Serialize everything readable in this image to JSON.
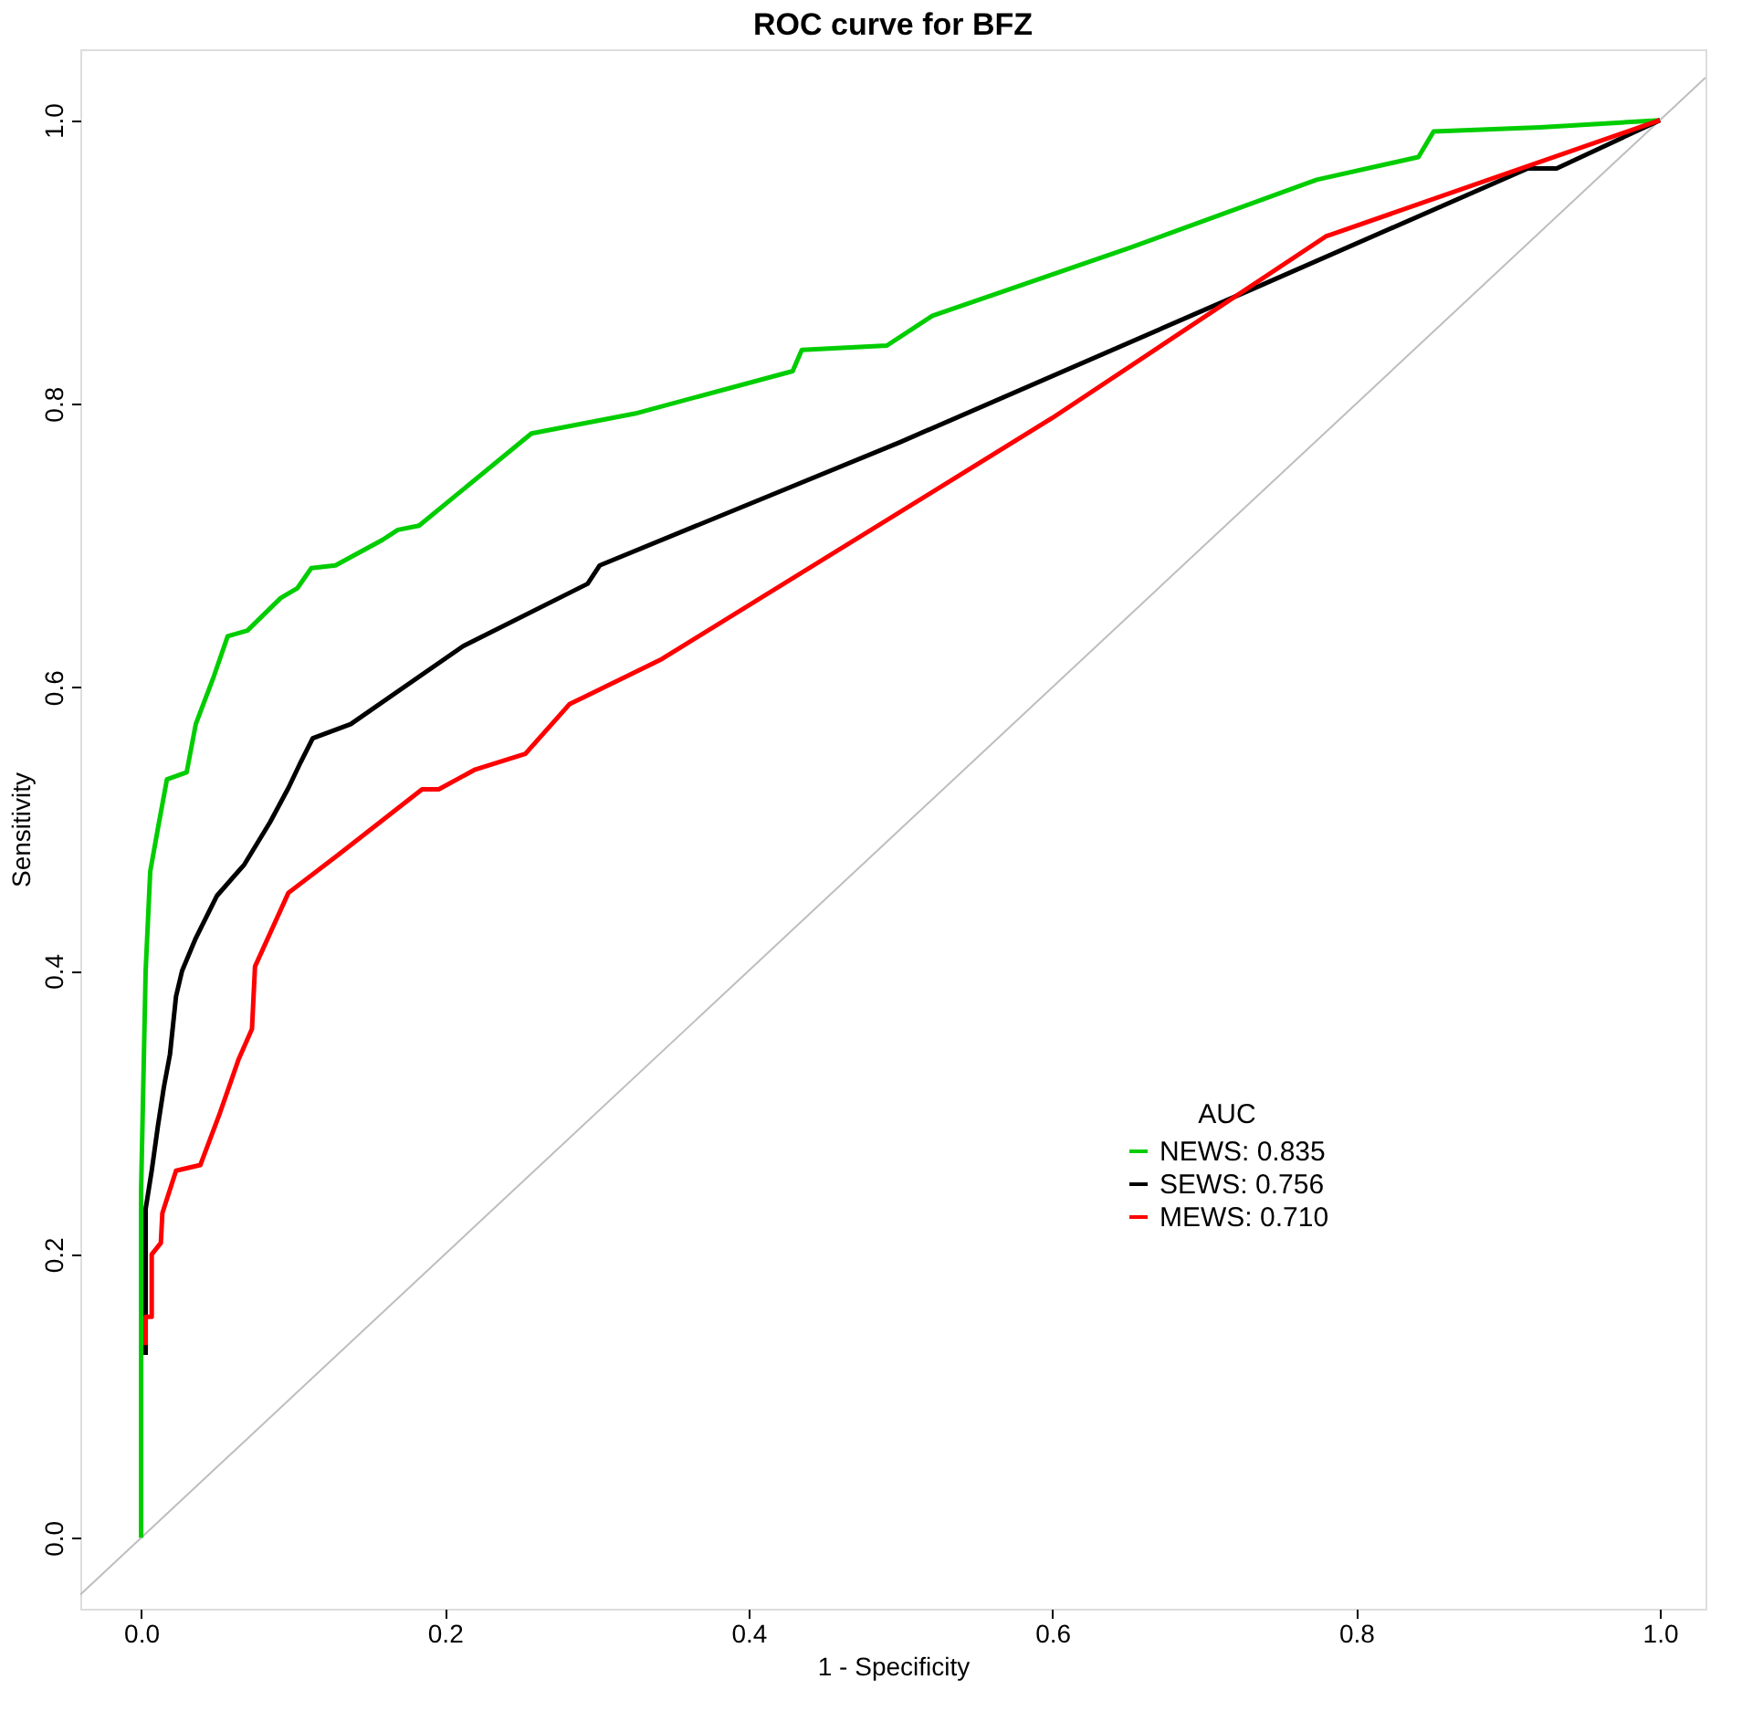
{
  "chart_data": {
    "type": "line",
    "title": "ROC curve for BFZ",
    "xlabel": "1 - Specificity",
    "ylabel": "Sensitivity",
    "legend_title": "AUC",
    "legend": "bottom right",
    "grid": false,
    "line_style": "solid",
    "marker": "none",
    "xlim": [
      -0.04,
      1.03
    ],
    "ylim": [
      -0.05,
      1.05
    ],
    "xticks": [
      {
        "value": 0,
        "label": "0.0"
      },
      {
        "value": 0.2,
        "label": "0.2"
      },
      {
        "value": 0.4,
        "label": "0.4"
      },
      {
        "value": 0.6,
        "label": "0.6"
      },
      {
        "value": 0.8,
        "label": "0.8"
      },
      {
        "value": 1,
        "label": "1.0"
      }
    ],
    "yticks": [
      {
        "value": 0,
        "label": "0.0"
      },
      {
        "value": 0.2,
        "label": "0.2"
      },
      {
        "value": 0.4,
        "label": "0.4"
      },
      {
        "value": 0.6,
        "label": "0.6"
      },
      {
        "value": 0.8,
        "label": "0.8"
      },
      {
        "value": 1,
        "label": "1.0"
      }
    ],
    "series": [
      {
        "color": "#bebebe",
        "x": [
          -0.04,
          1.03
        ],
        "values": [
          -0.04,
          1.03
        ]
      },
      {
        "name": "NEWS: 0.835",
        "color": "#00cd00",
        "x": [
          0,
          0,
          0.003,
          0.006,
          0.011,
          0.017,
          0.03,
          0.036,
          0.048,
          0.057,
          0.07,
          0.092,
          0.103,
          0.112,
          0.128,
          0.159,
          0.169,
          0.183,
          0.257,
          0.325,
          0.429,
          0.435,
          0.491,
          0.521,
          0.651,
          0.774,
          0.841,
          0.851,
          0.921,
          1
        ],
        "values": [
          0,
          0.245,
          0.4,
          0.47,
          0.5,
          0.535,
          0.54,
          0.574,
          0.608,
          0.636,
          0.64,
          0.663,
          0.67,
          0.684,
          0.686,
          0.704,
          0.711,
          0.714,
          0.779,
          0.793,
          0.823,
          0.838,
          0.841,
          0.862,
          0.91,
          0.958,
          0.974,
          0.992,
          0.995,
          1
        ]
      },
      {
        "name": "SEWS: 0.756",
        "color": "#000000",
        "x": [
          0.003,
          0.003,
          0.007,
          0.011,
          0.015,
          0.019,
          0.023,
          0.027,
          0.036,
          0.05,
          0.068,
          0.085,
          0.097,
          0.105,
          0.113,
          0.138,
          0.212,
          0.294,
          0.302,
          0.5,
          0.732,
          0.913,
          0.932,
          1
        ],
        "values": [
          0.129,
          0.232,
          0.259,
          0.29,
          0.318,
          0.341,
          0.382,
          0.4,
          0.423,
          0.453,
          0.475,
          0.505,
          0.529,
          0.547,
          0.564,
          0.574,
          0.629,
          0.673,
          0.686,
          0.773,
          0.881,
          0.966,
          0.966,
          1
        ]
      },
      {
        "name": "MEWS: 0.710",
        "color": "#ff0000",
        "x": [
          0.003,
          0.003,
          0.007,
          0.007,
          0.013,
          0.014,
          0.023,
          0.039,
          0.052,
          0.064,
          0.073,
          0.075,
          0.097,
          0.13,
          0.185,
          0.196,
          0.22,
          0.253,
          0.282,
          0.343,
          0.6,
          0.78,
          1
        ],
        "values": [
          0.136,
          0.156,
          0.156,
          0.2,
          0.208,
          0.229,
          0.259,
          0.263,
          0.3,
          0.337,
          0.359,
          0.403,
          0.455,
          0.482,
          0.528,
          0.528,
          0.542,
          0.553,
          0.588,
          0.62,
          0.79,
          0.918,
          1
        ]
      }
    ]
  }
}
